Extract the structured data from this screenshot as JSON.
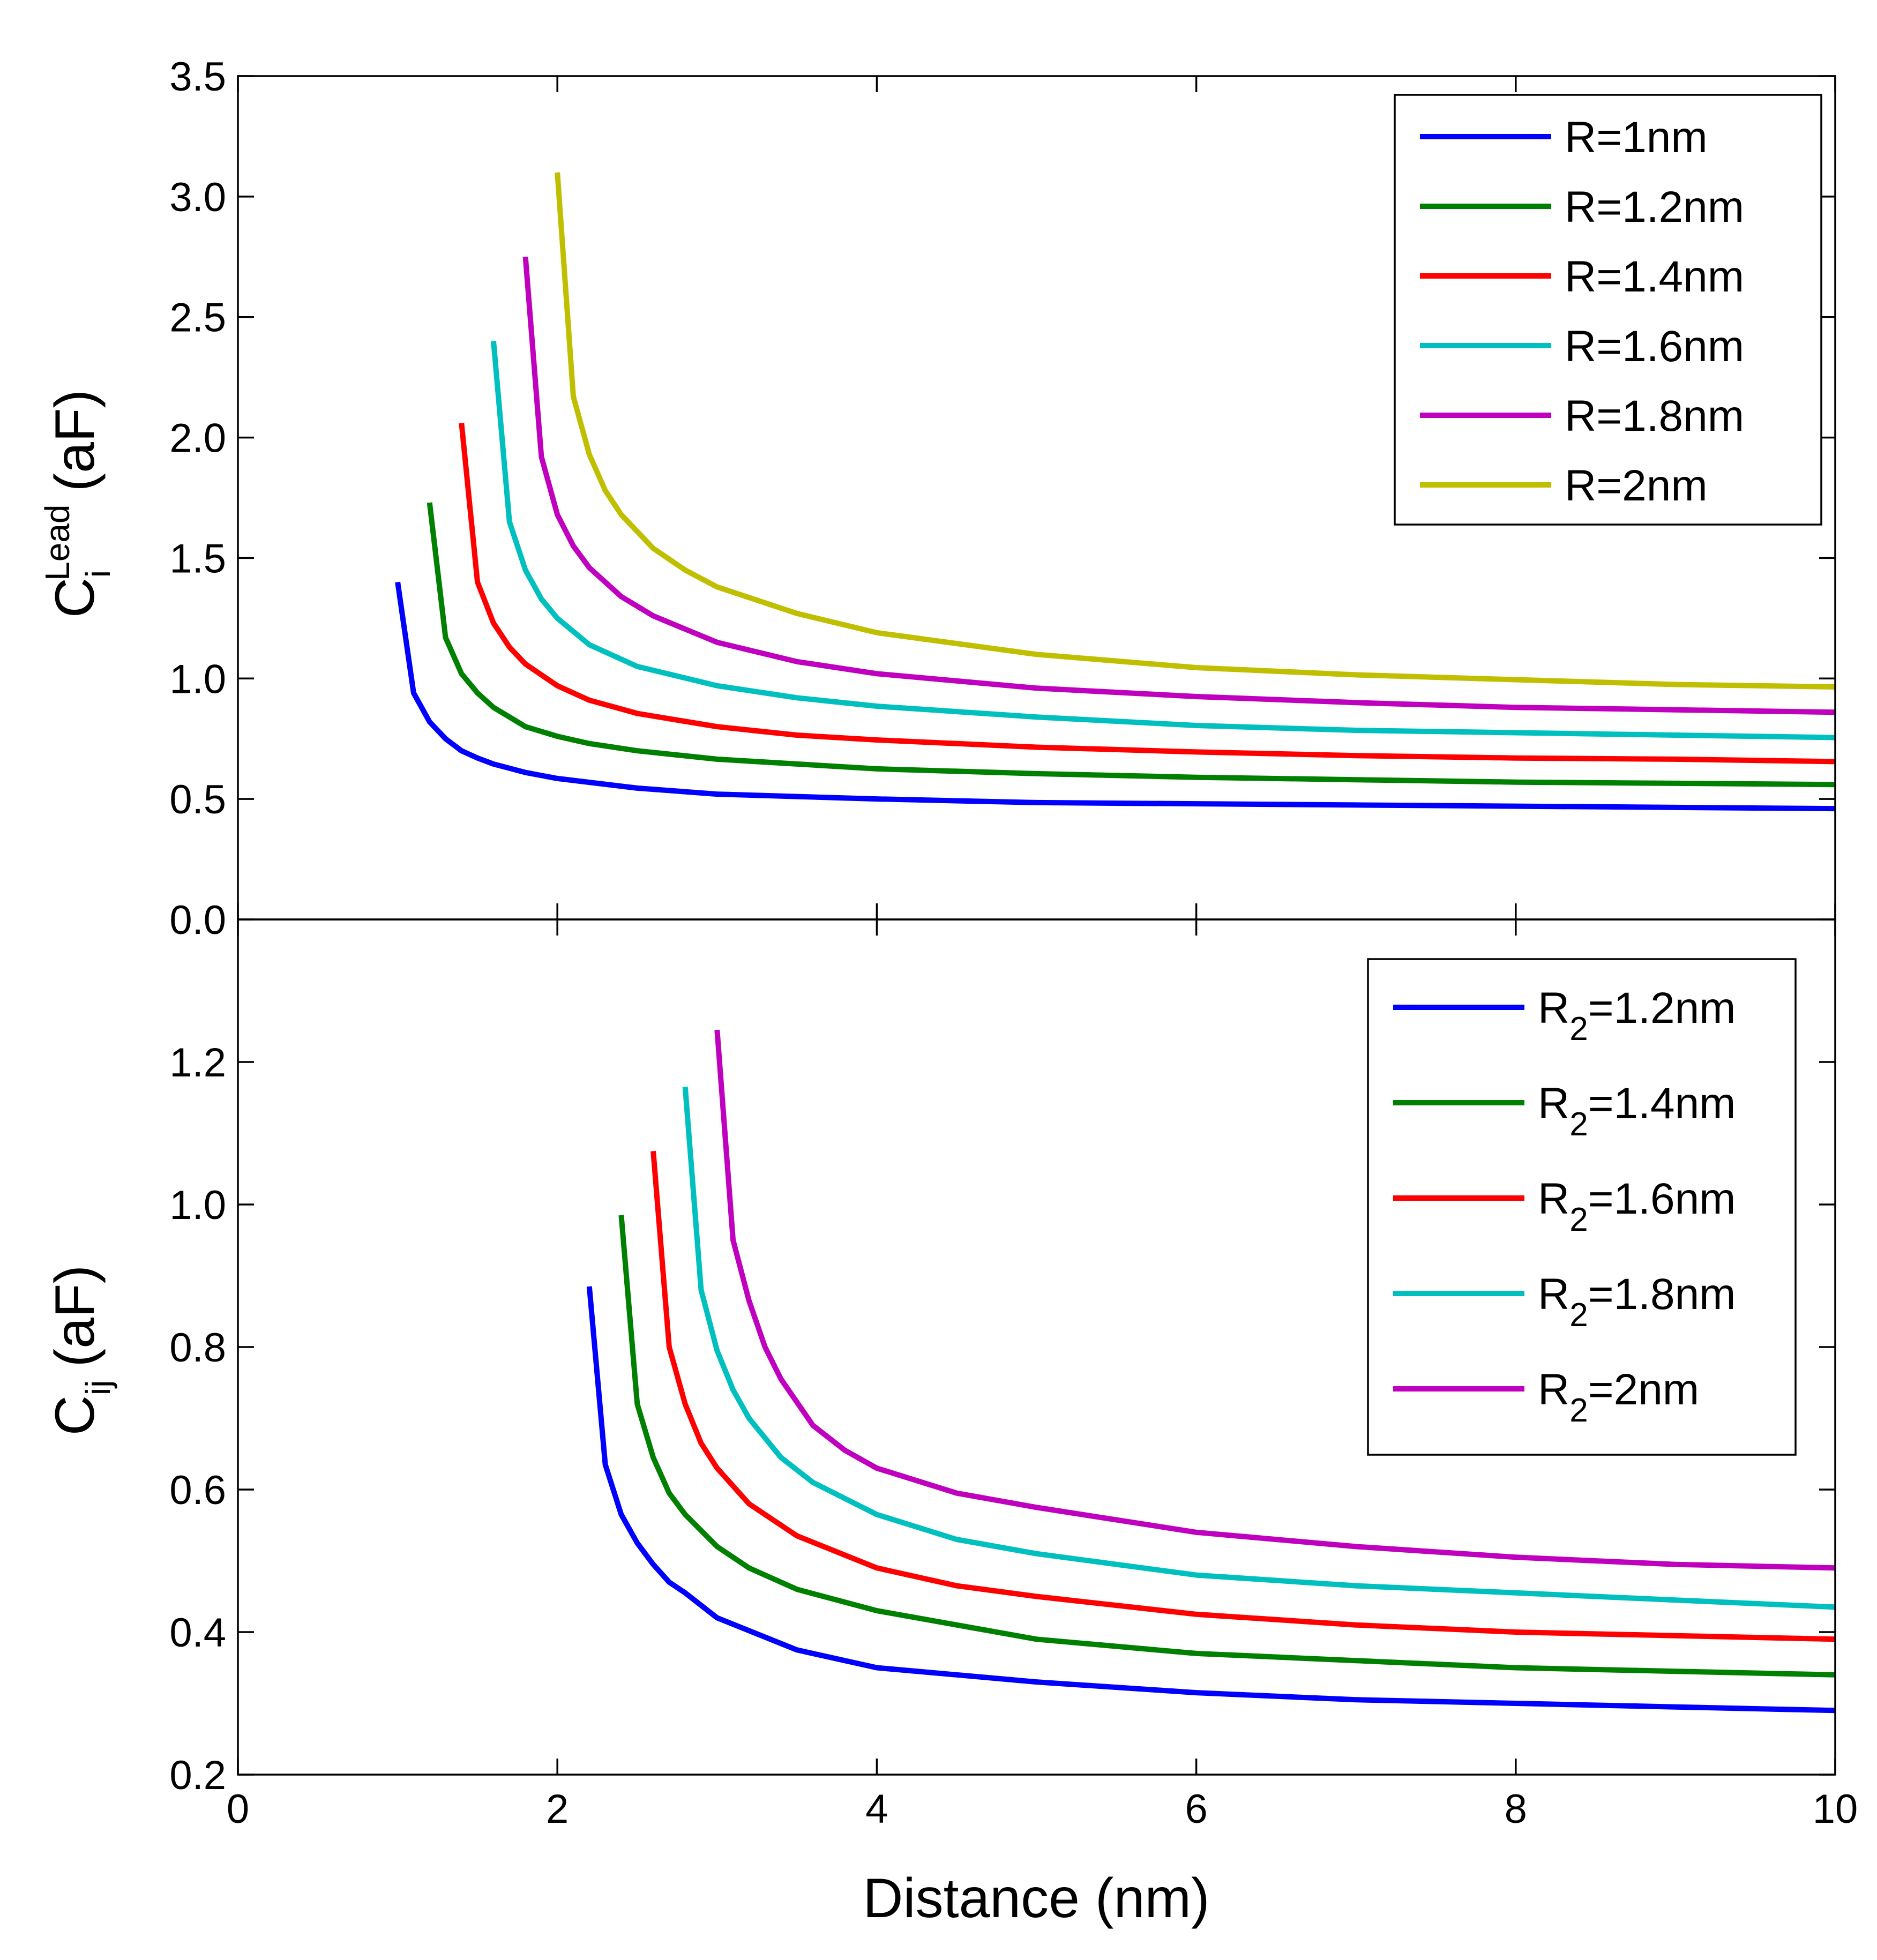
{
  "chart_data": [
    {
      "type": "line",
      "panel": "top",
      "ylabel": {
        "main": "C",
        "sub": "i",
        "sup": "Lead",
        "unit": "(aF)"
      },
      "xlim": [
        0,
        10
      ],
      "ylim": [
        0,
        3.5
      ],
      "yticks": [
        "0.0",
        "0.5",
        "1.0",
        "1.5",
        "2.0",
        "2.5",
        "3.0",
        "3.5"
      ],
      "legend_position": "top-right",
      "series": [
        {
          "name": "R=1nm",
          "color": "#0000ff",
          "x": [
            1.0,
            1.1,
            1.2,
            1.3,
            1.4,
            1.5,
            1.6,
            1.8,
            2.0,
            2.5,
            3.0,
            4.0,
            5.0,
            6.0,
            7.0,
            8.0,
            9.0,
            10.0
          ],
          "y": [
            1.4,
            0.94,
            0.82,
            0.75,
            0.7,
            0.67,
            0.645,
            0.61,
            0.585,
            0.545,
            0.52,
            0.5,
            0.485,
            0.48,
            0.475,
            0.47,
            0.465,
            0.46
          ]
        },
        {
          "name": "R=1.2nm",
          "color": "#008000",
          "x": [
            1.2,
            1.3,
            1.4,
            1.5,
            1.6,
            1.7,
            1.8,
            2.0,
            2.2,
            2.5,
            3.0,
            4.0,
            5.0,
            6.0,
            7.0,
            8.0,
            9.0,
            10.0
          ],
          "y": [
            1.73,
            1.17,
            1.02,
            0.94,
            0.88,
            0.84,
            0.8,
            0.76,
            0.73,
            0.7,
            0.665,
            0.625,
            0.605,
            0.59,
            0.58,
            0.57,
            0.565,
            0.56
          ]
        },
        {
          "name": "R=1.4nm",
          "color": "#ff0000",
          "x": [
            1.4,
            1.5,
            1.6,
            1.7,
            1.8,
            2.0,
            2.2,
            2.5,
            3.0,
            3.5,
            4.0,
            5.0,
            6.0,
            7.0,
            8.0,
            9.0,
            10.0
          ],
          "y": [
            2.06,
            1.4,
            1.23,
            1.13,
            1.06,
            0.97,
            0.91,
            0.855,
            0.8,
            0.765,
            0.745,
            0.715,
            0.695,
            0.68,
            0.67,
            0.665,
            0.655
          ]
        },
        {
          "name": "R=1.6nm",
          "color": "#00bfbf",
          "x": [
            1.6,
            1.7,
            1.8,
            1.9,
            2.0,
            2.2,
            2.5,
            3.0,
            3.5,
            4.0,
            5.0,
            6.0,
            7.0,
            8.0,
            9.0,
            10.0
          ],
          "y": [
            2.4,
            1.65,
            1.45,
            1.33,
            1.25,
            1.14,
            1.05,
            0.97,
            0.92,
            0.885,
            0.84,
            0.805,
            0.785,
            0.775,
            0.765,
            0.755
          ]
        },
        {
          "name": "R=1.8nm",
          "color": "#bf00bf",
          "x": [
            1.8,
            1.9,
            2.0,
            2.1,
            2.2,
            2.4,
            2.6,
            3.0,
            3.5,
            4.0,
            5.0,
            6.0,
            7.0,
            8.0,
            9.0,
            10.0
          ],
          "y": [
            2.75,
            1.92,
            1.68,
            1.55,
            1.46,
            1.34,
            1.26,
            1.15,
            1.07,
            1.02,
            0.96,
            0.925,
            0.9,
            0.88,
            0.87,
            0.86
          ]
        },
        {
          "name": "R=2nm",
          "color": "#bfbf00",
          "x": [
            2.0,
            2.1,
            2.2,
            2.3,
            2.4,
            2.6,
            2.8,
            3.0,
            3.5,
            4.0,
            5.0,
            6.0,
            7.0,
            8.0,
            9.0,
            10.0
          ],
          "y": [
            3.1,
            2.17,
            1.93,
            1.78,
            1.68,
            1.54,
            1.45,
            1.38,
            1.27,
            1.19,
            1.1,
            1.045,
            1.015,
            0.995,
            0.975,
            0.965
          ]
        }
      ]
    },
    {
      "type": "line",
      "panel": "bottom",
      "xlabel": "Distance (nm)",
      "ylabel": {
        "main": "C",
        "sub": "ij",
        "unit": "(aF)"
      },
      "xlim": [
        0,
        10
      ],
      "ylim": [
        0.2,
        1.4
      ],
      "xticks": [
        "0",
        "2",
        "4",
        "6",
        "8",
        "10"
      ],
      "yticks": [
        "0.2",
        "0.4",
        "0.6",
        "0.8",
        "1.0",
        "1.2"
      ],
      "legend_position": "top-right",
      "series": [
        {
          "name": "R",
          "sub": "2",
          "suffix": "=1.2nm",
          "color": "#0000ff",
          "x": [
            2.2,
            2.3,
            2.4,
            2.5,
            2.6,
            2.7,
            2.8,
            3.0,
            3.5,
            4.0,
            5.0,
            6.0,
            7.0,
            8.0,
            9.0,
            10.0
          ],
          "y": [
            0.885,
            0.635,
            0.565,
            0.525,
            0.495,
            0.47,
            0.455,
            0.42,
            0.375,
            0.35,
            0.33,
            0.315,
            0.305,
            0.3,
            0.295,
            0.29
          ]
        },
        {
          "name": "R",
          "sub": "2",
          "suffix": "=1.4nm",
          "color": "#008000",
          "x": [
            2.4,
            2.5,
            2.6,
            2.7,
            2.8,
            3.0,
            3.2,
            3.5,
            4.0,
            5.0,
            6.0,
            7.0,
            8.0,
            9.0,
            10.0
          ],
          "y": [
            0.985,
            0.72,
            0.645,
            0.595,
            0.565,
            0.52,
            0.49,
            0.46,
            0.43,
            0.39,
            0.37,
            0.36,
            0.35,
            0.345,
            0.34
          ]
        },
        {
          "name": "R",
          "sub": "2",
          "suffix": "=1.6nm",
          "color": "#ff0000",
          "x": [
            2.6,
            2.7,
            2.8,
            2.9,
            3.0,
            3.2,
            3.5,
            4.0,
            4.5,
            5.0,
            6.0,
            7.0,
            8.0,
            9.0,
            10.0
          ],
          "y": [
            1.075,
            0.8,
            0.72,
            0.665,
            0.63,
            0.58,
            0.535,
            0.49,
            0.465,
            0.45,
            0.425,
            0.41,
            0.4,
            0.395,
            0.39
          ]
        },
        {
          "name": "R",
          "sub": "2",
          "suffix": "=1.8nm",
          "color": "#00bfbf",
          "x": [
            2.8,
            2.9,
            3.0,
            3.1,
            3.2,
            3.4,
            3.6,
            4.0,
            4.5,
            5.0,
            6.0,
            7.0,
            8.0,
            9.0,
            10.0
          ],
          "y": [
            1.165,
            0.88,
            0.795,
            0.74,
            0.7,
            0.645,
            0.61,
            0.565,
            0.53,
            0.51,
            0.48,
            0.465,
            0.455,
            0.445,
            0.435
          ]
        },
        {
          "name": "R",
          "sub": "2",
          "suffix": "=2nm",
          "color": "#bf00bf",
          "x": [
            3.0,
            3.1,
            3.2,
            3.3,
            3.4,
            3.6,
            3.8,
            4.0,
            4.5,
            5.0,
            6.0,
            7.0,
            8.0,
            9.0,
            10.0
          ],
          "y": [
            1.245,
            0.95,
            0.865,
            0.8,
            0.755,
            0.69,
            0.655,
            0.63,
            0.595,
            0.575,
            0.54,
            0.52,
            0.505,
            0.495,
            0.49
          ]
        }
      ]
    }
  ]
}
